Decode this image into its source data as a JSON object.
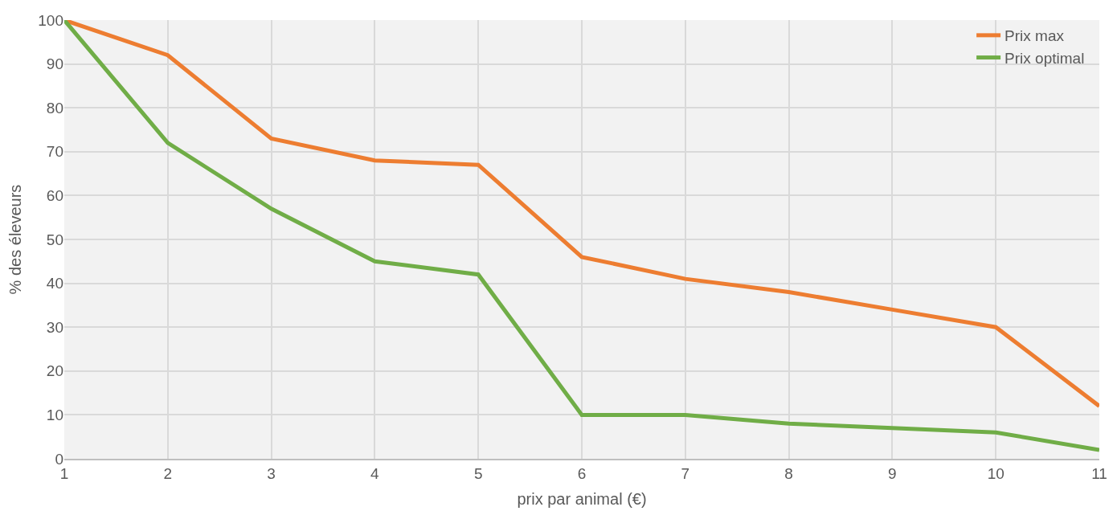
{
  "chart_data": {
    "type": "line",
    "xlabel": "prix par animal (€)",
    "ylabel": "% des éleveurs",
    "x": [
      1,
      2,
      3,
      4,
      5,
      6,
      7,
      8,
      9,
      10,
      11
    ],
    "series": [
      {
        "name": "Prix max",
        "color": "#ed7d31",
        "values": [
          100,
          92,
          73,
          68,
          67,
          46,
          41,
          38,
          34,
          30,
          12
        ]
      },
      {
        "name": "Prix optimal",
        "color": "#70ad47",
        "values": [
          100,
          72,
          57,
          45,
          42,
          10,
          10,
          8,
          7,
          6,
          2
        ]
      }
    ],
    "xlim": [
      1,
      11
    ],
    "xticks": [
      1,
      2,
      3,
      4,
      5,
      6,
      7,
      8,
      9,
      10,
      11
    ],
    "ylim": [
      0,
      100
    ],
    "yticks": [
      0,
      10,
      20,
      30,
      40,
      50,
      60,
      70,
      80,
      90,
      100
    ],
    "grid": true,
    "legend": "top right",
    "marker": "none",
    "line_style": "solid"
  }
}
